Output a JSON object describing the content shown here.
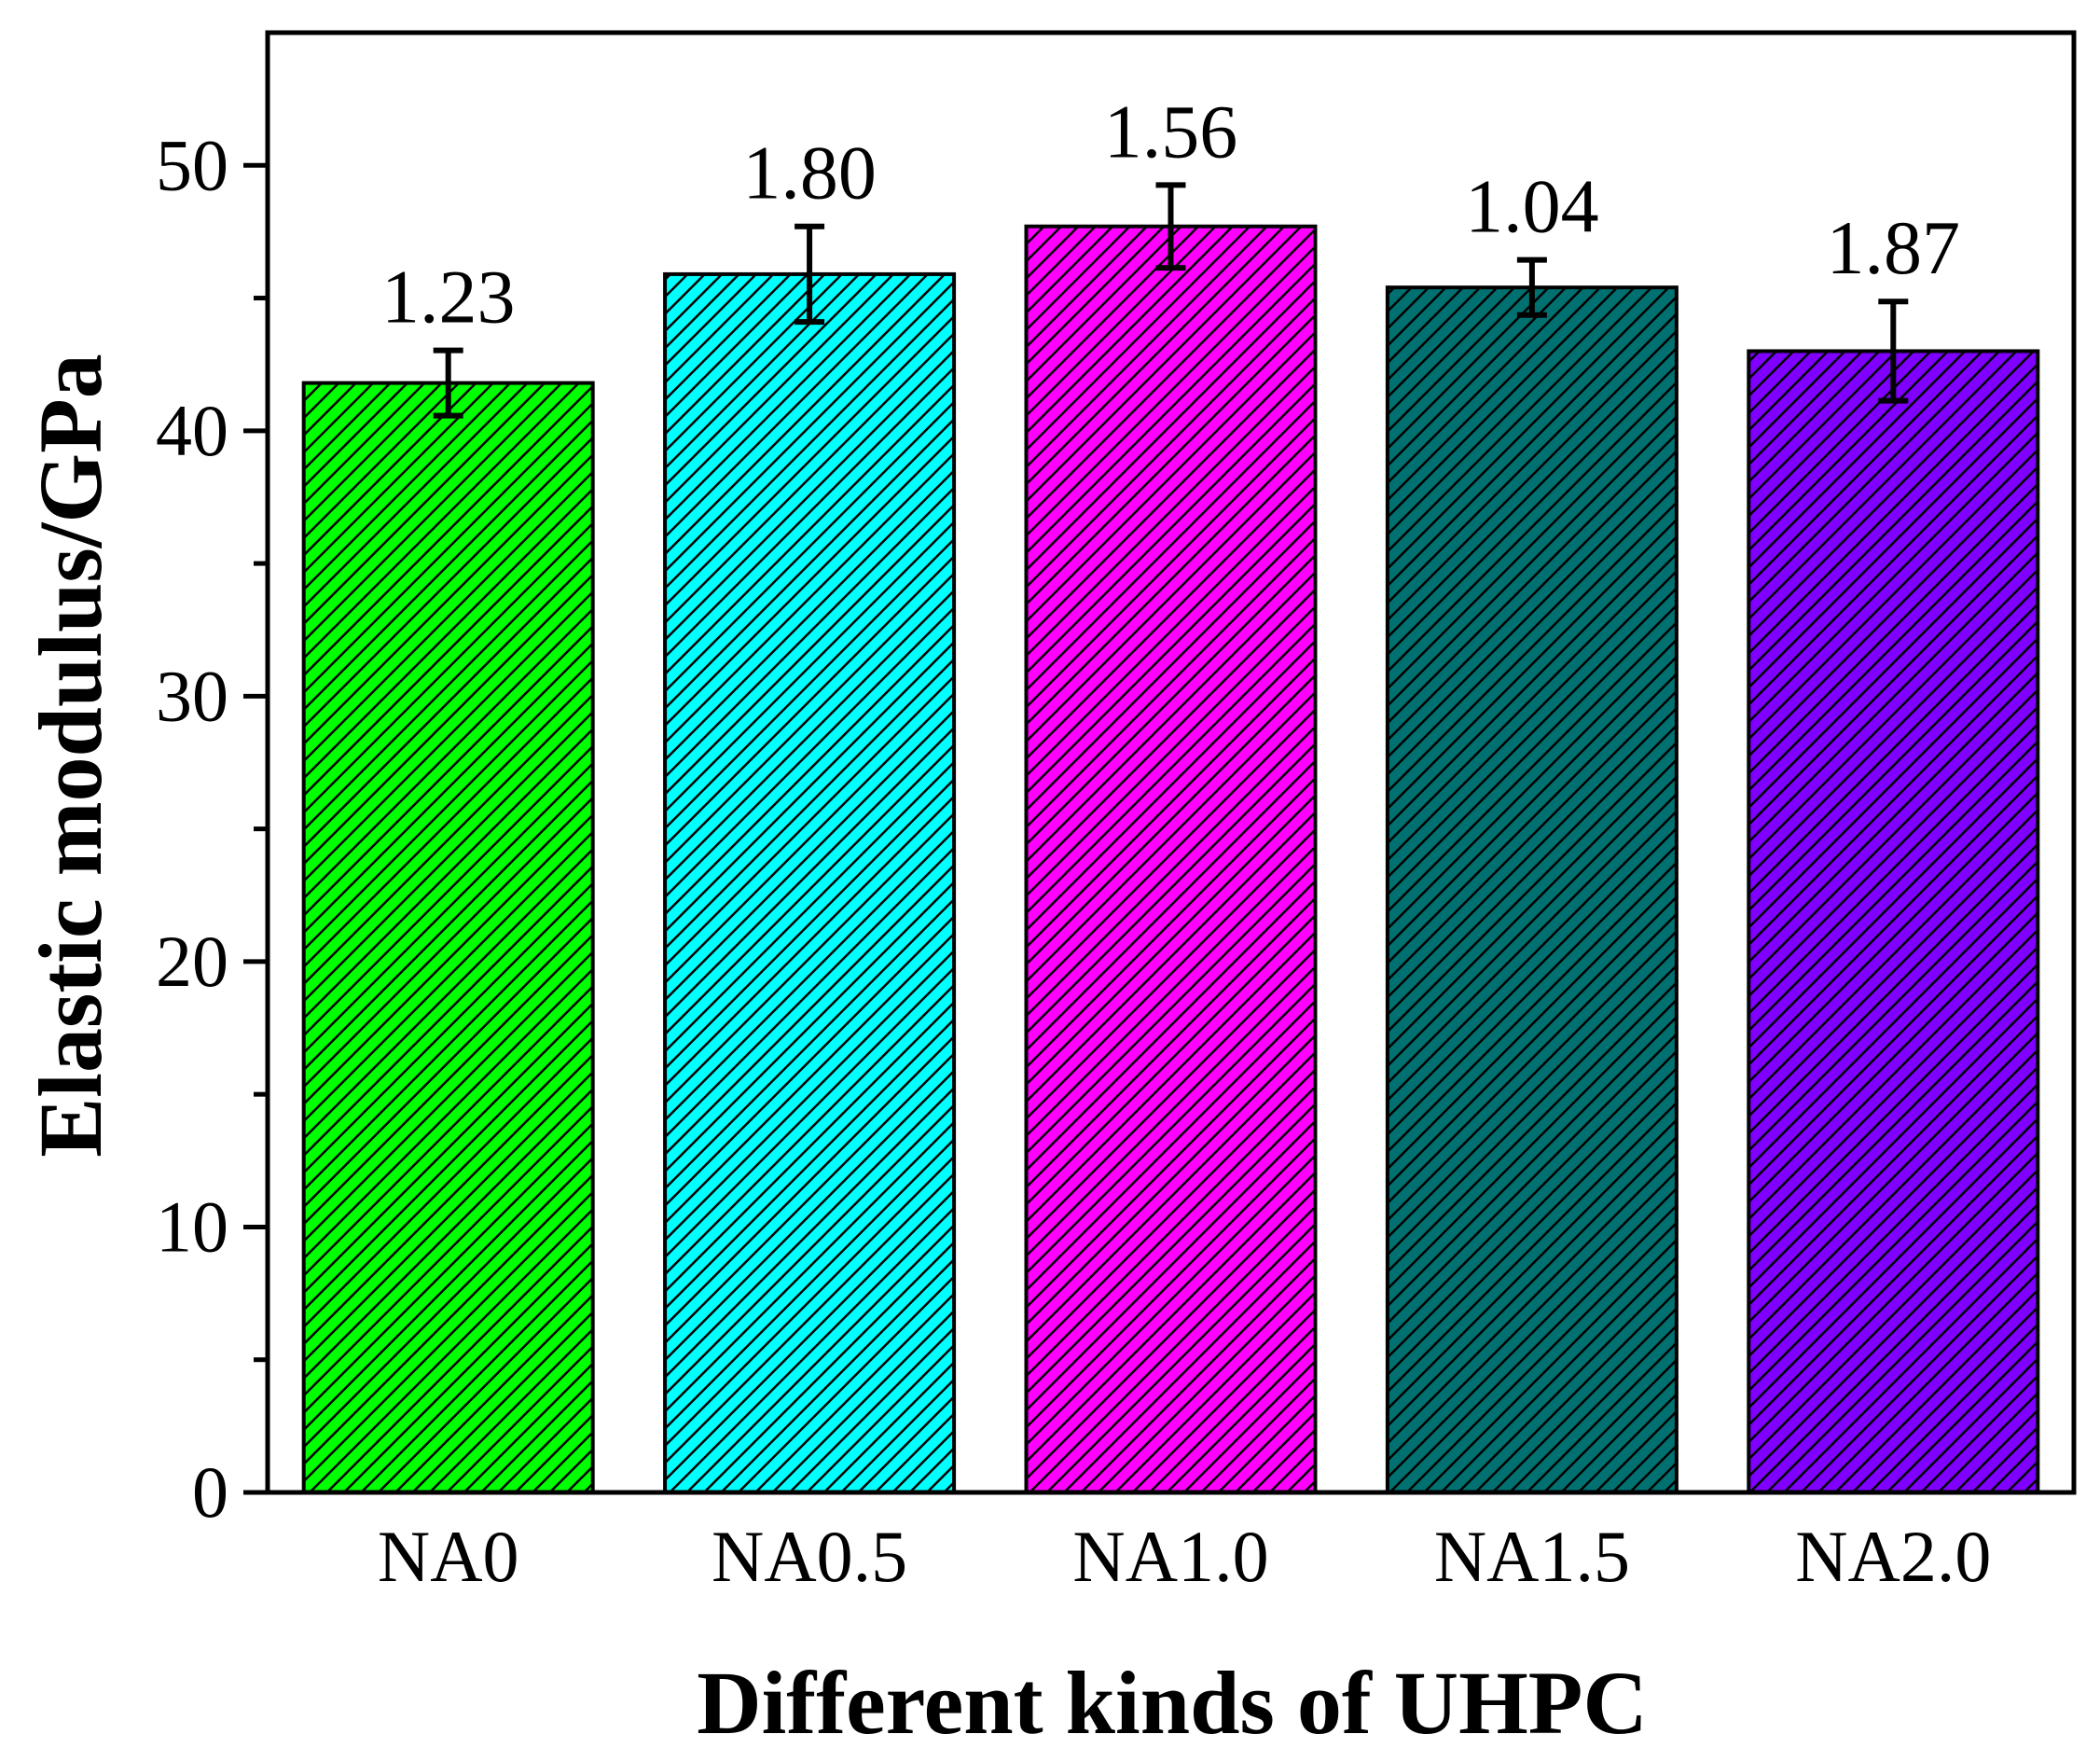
{
  "chart_data": {
    "type": "bar",
    "title": "",
    "xlabel": "Different kinds of UHPC",
    "ylabel": "Elastic modulus/GPa",
    "categories": [
      "NA0",
      "NA0.5",
      "NA1.0",
      "NA1.5",
      "NA2.0"
    ],
    "values": [
      41.8,
      45.9,
      47.7,
      45.4,
      43.0
    ],
    "errors": [
      1.23,
      1.8,
      1.56,
      1.04,
      1.87
    ],
    "error_labels": [
      "1.23",
      "1.80",
      "1.56",
      "1.04",
      "1.87"
    ],
    "colors": [
      "#00ff00",
      "#00ffff",
      "#ff00ff",
      "#007070",
      "#7f00ff"
    ],
    "hatch": "diagonal-lines",
    "ylim": [
      0,
      55
    ],
    "yticks": [
      0,
      10,
      20,
      30,
      40,
      50
    ],
    "ytick_labels": [
      "0",
      "10",
      "20",
      "30",
      "40",
      "50"
    ],
    "grid": false,
    "legend": "none"
  }
}
